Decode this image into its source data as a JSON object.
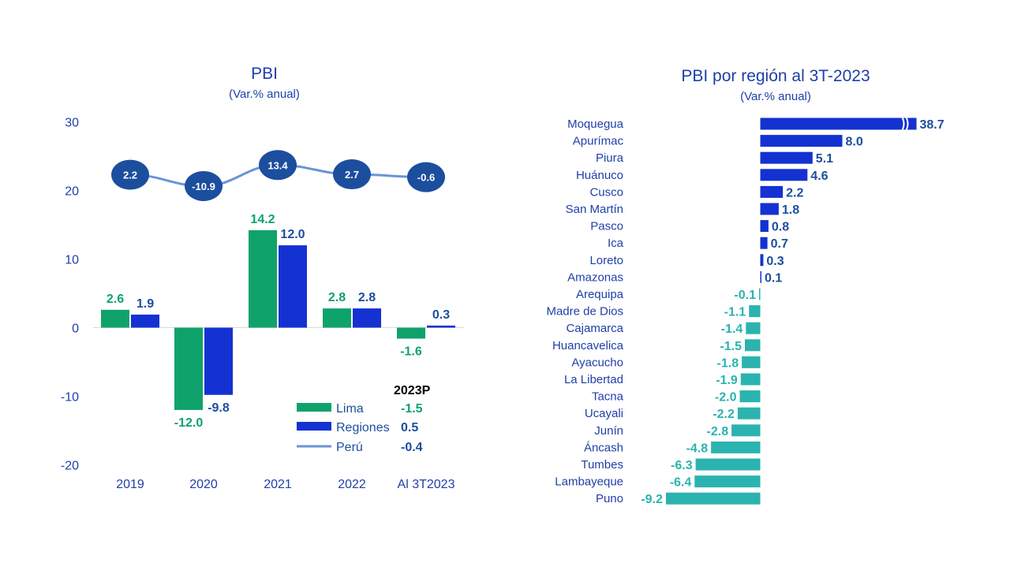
{
  "colors": {
    "lima": "#0FA36B",
    "regiones": "#1432D2",
    "peru": "#6B93D8",
    "bubble": "#1C4E9E",
    "axis_text": "#1F3FA8",
    "negative": "#2BB3B0",
    "dark": "#000000"
  },
  "chart_data": [
    {
      "type": "bar",
      "title": "PBI",
      "subtitle": "(Var.% anual)",
      "categories": [
        "2019",
        "2020",
        "2021",
        "2022",
        "Al 3T2023"
      ],
      "ylim": [
        -20,
        30
      ],
      "yticks": [
        "30",
        "20",
        "10",
        "0",
        "-10",
        "-20"
      ],
      "tick_values": [
        30,
        20,
        10,
        0,
        -10,
        -20
      ],
      "grid": false,
      "series": [
        {
          "name": "Lima",
          "kind": "bar",
          "values": [
            2.6,
            -12.0,
            14.2,
            2.8,
            -1.6
          ],
          "labels": [
            "2.6",
            "-12.0",
            "14.2",
            "2.8",
            "-1.6"
          ]
        },
        {
          "name": "Regiones",
          "kind": "bar",
          "values": [
            1.9,
            -9.8,
            12.0,
            2.8,
            0.3
          ],
          "labels": [
            "1.9",
            "-9.8",
            "12.0",
            "2.8",
            "0.3"
          ]
        },
        {
          "name": "Perú",
          "kind": "line",
          "values": [
            2.2,
            -10.9,
            13.4,
            2.7,
            -0.6
          ],
          "labels": [
            "2.2",
            "-10.9",
            "13.4",
            "2.7",
            "-0.6"
          ]
        }
      ],
      "legend": {
        "position": "bottom-right",
        "header": "2023P",
        "entries": [
          {
            "name": "Lima",
            "value": "-1.5"
          },
          {
            "name": "Regiones",
            "value": "0.5"
          },
          {
            "name": "Perú",
            "value": "-0.4"
          }
        ]
      }
    },
    {
      "type": "bar",
      "orientation": "horizontal",
      "title": "PBI por región al 3T-2023",
      "subtitle": "(Var.% anual)",
      "categories": [
        "Moquegua",
        "Apurímac",
        "Piura",
        "Huánuco",
        "Cusco",
        "San Martín",
        "Pasco",
        "Ica",
        "Loreto",
        "Amazonas",
        "Arequipa",
        "Madre de Dios",
        "Cajamarca",
        "Huancavelica",
        "Ayacucho",
        "La Libertad",
        "Tacna",
        "Ucayali",
        "Junín",
        "Áncash",
        "Tumbes",
        "Lambayeque",
        "Puno"
      ],
      "values": [
        38.7,
        8.0,
        5.1,
        4.6,
        2.2,
        1.8,
        0.8,
        0.7,
        0.3,
        0.1,
        -0.1,
        -1.1,
        -1.4,
        -1.5,
        -1.8,
        -1.9,
        -2.0,
        -2.2,
        -2.8,
        -4.8,
        -6.3,
        -6.4,
        -9.2
      ],
      "labels": [
        "38.7",
        "8.0",
        "5.1",
        "4.6",
        "2.2",
        "1.8",
        "0.8",
        "0.7",
        "0.3",
        "0.1",
        "-0.1",
        "-1.1",
        "-1.4",
        "-1.5",
        "-1.8",
        "-1.9",
        "-2.0",
        "-2.2",
        "-2.8",
        "-4.8",
        "-6.3",
        "-6.4",
        "-9.2"
      ],
      "axis_break": "Moquegua"
    }
  ]
}
